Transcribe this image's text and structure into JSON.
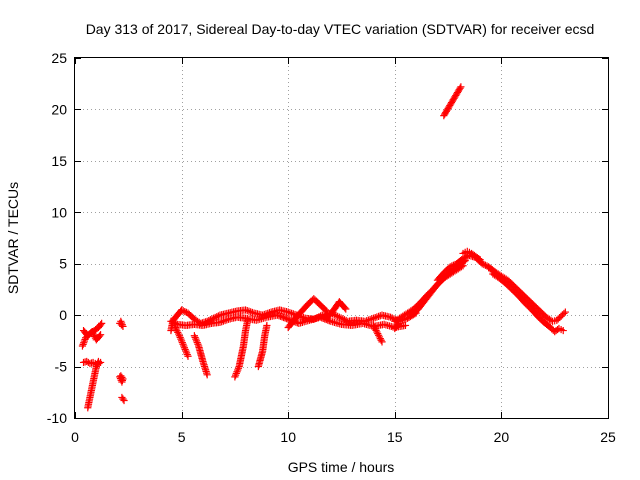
{
  "chart_data": {
    "type": "scatter",
    "title": "Day 313 of 2017, Sidereal Day-to-day VTEC variation (SDTVAR) for receiver ecsd",
    "xlabel": "GPS time / hours",
    "ylabel": "SDTVAR / TECUs",
    "xlim": [
      0,
      25
    ],
    "ylim": [
      -10,
      25
    ],
    "xticks": [
      0,
      5,
      10,
      15,
      20,
      25
    ],
    "yticks": [
      -10,
      -5,
      0,
      5,
      10,
      15,
      20,
      25
    ],
    "xtick_labels": [
      "0",
      "5",
      "10",
      "15",
      "20",
      "25"
    ],
    "ytick_labels": [
      "-10",
      "-5",
      "0",
      "5",
      "10",
      "15",
      "20",
      "25"
    ],
    "grid": true,
    "marker": "+",
    "series_color": "#ff0000",
    "series": [
      {
        "name": "SDTVAR",
        "segments": [
          [
            [
              0.35,
              -3.0
            ],
            [
              0.5,
              -2.2
            ],
            [
              0.7,
              -1.8
            ],
            [
              0.9,
              -1.5
            ],
            [
              1.1,
              -1.2
            ],
            [
              1.25,
              -0.8
            ]
          ],
          [
            [
              0.4,
              -1.5
            ],
            [
              0.6,
              -2.0
            ],
            [
              0.8,
              -1.6
            ],
            [
              1.0,
              -2.4
            ],
            [
              1.2,
              -1.9
            ]
          ],
          [
            [
              0.4,
              -4.6
            ],
            [
              0.55,
              -4.5
            ],
            [
              0.7,
              -4.7
            ],
            [
              0.85,
              -4.6
            ],
            [
              1.05,
              -4.8
            ],
            [
              1.2,
              -4.6
            ]
          ],
          [
            [
              0.6,
              -9.0
            ],
            [
              0.7,
              -8.0
            ],
            [
              0.8,
              -7.0
            ],
            [
              0.9,
              -6.0
            ],
            [
              1.0,
              -5.0
            ],
            [
              1.1,
              -4.5
            ]
          ],
          [
            [
              2.1,
              -0.8
            ],
            [
              2.25,
              -1.1
            ],
            [
              2.15,
              -0.6
            ]
          ],
          [
            [
              2.1,
              -6.0
            ],
            [
              2.2,
              -6.5
            ],
            [
              2.25,
              -6.2
            ],
            [
              2.15,
              -5.9
            ]
          ],
          [
            [
              2.2,
              -8.0
            ],
            [
              2.3,
              -8.3
            ]
          ],
          [
            [
              4.5,
              -1.5
            ],
            [
              4.6,
              -0.5
            ],
            [
              4.8,
              0.0
            ],
            [
              5.0,
              0.5
            ],
            [
              5.3,
              0.2
            ],
            [
              5.6,
              -0.4
            ],
            [
              5.9,
              -0.8
            ],
            [
              6.2,
              -0.6
            ],
            [
              6.5,
              -0.3
            ],
            [
              6.8,
              0.0
            ],
            [
              7.2,
              0.2
            ],
            [
              7.6,
              0.4
            ],
            [
              8.0,
              0.5
            ],
            [
              8.4,
              0.2
            ],
            [
              8.8,
              0.0
            ],
            [
              9.2,
              0.3
            ],
            [
              9.6,
              0.5
            ],
            [
              10.0,
              0.3
            ],
            [
              10.4,
              0.0
            ],
            [
              10.8,
              -0.3
            ],
            [
              11.2,
              -0.4
            ],
            [
              11.6,
              0.0
            ],
            [
              12.0,
              0.2
            ],
            [
              12.4,
              -0.2
            ],
            [
              12.8,
              -0.6
            ],
            [
              13.2,
              -0.5
            ],
            [
              13.6,
              -0.6
            ],
            [
              14.0,
              -0.3
            ],
            [
              14.4,
              0.0
            ],
            [
              14.8,
              -0.2
            ],
            [
              15.2,
              -0.6
            ],
            [
              15.6,
              -0.3
            ],
            [
              16.0,
              0.2
            ]
          ],
          [
            [
              4.5,
              -0.6
            ],
            [
              4.8,
              -0.9
            ],
            [
              5.2,
              -1.0
            ],
            [
              5.6,
              -0.9
            ],
            [
              6.0,
              -1.0
            ],
            [
              6.4,
              -0.8
            ],
            [
              6.8,
              -0.7
            ],
            [
              7.2,
              -0.4
            ],
            [
              7.6,
              -0.2
            ],
            [
              8.0,
              -0.3
            ],
            [
              8.5,
              -0.5
            ],
            [
              9.0,
              -0.2
            ],
            [
              9.5,
              0.0
            ],
            [
              10.0,
              -0.4
            ],
            [
              10.5,
              -0.8
            ],
            [
              11.0,
              -0.5
            ],
            [
              11.5,
              -0.2
            ],
            [
              12.0,
              -0.6
            ],
            [
              12.5,
              -0.9
            ],
            [
              13.0,
              -1.0
            ],
            [
              13.5,
              -0.8
            ],
            [
              14.0,
              -1.1
            ],
            [
              14.5,
              -0.9
            ],
            [
              15.0,
              -1.2
            ],
            [
              15.5,
              -1.0
            ]
          ],
          [
            [
              4.7,
              -1.2
            ],
            [
              4.9,
              -2.0
            ],
            [
              5.1,
              -3.0
            ],
            [
              5.3,
              -4.0
            ]
          ],
          [
            [
              5.6,
              -2.0
            ],
            [
              5.8,
              -3.0
            ],
            [
              6.0,
              -4.5
            ],
            [
              6.2,
              -5.8
            ]
          ],
          [
            [
              7.5,
              -6.0
            ],
            [
              7.7,
              -5.0
            ],
            [
              7.9,
              -3.0
            ],
            [
              8.0,
              -1.5
            ],
            [
              8.1,
              -0.5
            ]
          ],
          [
            [
              8.6,
              -5.0
            ],
            [
              8.8,
              -3.5
            ],
            [
              8.9,
              -2.0
            ],
            [
              9.0,
              -1.0
            ]
          ],
          [
            [
              10.0,
              -1.2
            ],
            [
              10.3,
              -0.4
            ],
            [
              10.6,
              0.3
            ],
            [
              10.9,
              1.0
            ],
            [
              11.2,
              1.6
            ],
            [
              11.5,
              1.0
            ],
            [
              11.8,
              0.4
            ]
          ],
          [
            [
              11.8,
              -0.3
            ],
            [
              12.1,
              0.4
            ],
            [
              12.4,
              1.3
            ],
            [
              12.7,
              0.6
            ]
          ],
          [
            [
              14.0,
              -1.0
            ],
            [
              14.2,
              -1.8
            ],
            [
              14.4,
              -2.6
            ]
          ],
          [
            [
              15.0,
              -1.3
            ],
            [
              15.2,
              -0.8
            ]
          ],
          [
            [
              15.0,
              -0.6
            ],
            [
              15.3,
              -0.2
            ],
            [
              15.6,
              0.2
            ],
            [
              15.9,
              0.6
            ],
            [
              16.2,
              1.2
            ],
            [
              16.5,
              1.9
            ],
            [
              16.8,
              2.5
            ],
            [
              17.1,
              3.2
            ],
            [
              17.4,
              3.8
            ],
            [
              17.7,
              4.3
            ],
            [
              18.0,
              4.8
            ],
            [
              18.3,
              5.3
            ]
          ],
          [
            [
              15.8,
              0.0
            ],
            [
              16.1,
              0.6
            ],
            [
              16.4,
              1.4
            ],
            [
              16.7,
              2.2
            ],
            [
              17.0,
              3.0
            ],
            [
              17.3,
              3.6
            ],
            [
              17.6,
              4.0
            ],
            [
              17.9,
              4.4
            ],
            [
              18.2,
              4.8
            ]
          ],
          [
            [
              17.0,
              3.4
            ],
            [
              17.3,
              4.1
            ],
            [
              17.6,
              4.7
            ],
            [
              17.9,
              5.0
            ],
            [
              18.2,
              5.5
            ],
            [
              18.5,
              5.8
            ],
            [
              18.8,
              5.6
            ],
            [
              19.1,
              5.0
            ],
            [
              19.4,
              4.7
            ],
            [
              19.7,
              4.2
            ]
          ],
          [
            [
              18.2,
              6.0
            ],
            [
              18.4,
              6.2
            ],
            [
              18.6,
              6.0
            ],
            [
              18.8,
              5.7
            ],
            [
              19.0,
              5.4
            ]
          ],
          [
            [
              19.4,
              4.6
            ],
            [
              19.7,
              4.2
            ],
            [
              20.0,
              3.8
            ],
            [
              20.3,
              3.4
            ],
            [
              20.6,
              2.8
            ],
            [
              20.9,
              2.2
            ],
            [
              21.2,
              1.6
            ],
            [
              21.5,
              1.0
            ],
            [
              21.8,
              0.4
            ],
            [
              22.1,
              -0.2
            ],
            [
              22.4,
              -0.6
            ],
            [
              22.6,
              -0.5
            ],
            [
              22.8,
              -0.1
            ],
            [
              23.0,
              0.3
            ]
          ],
          [
            [
              19.6,
              4.0
            ],
            [
              19.9,
              3.6
            ],
            [
              20.2,
              3.1
            ],
            [
              20.5,
              2.5
            ],
            [
              20.8,
              1.9
            ],
            [
              21.1,
              1.2
            ],
            [
              21.4,
              0.6
            ],
            [
              21.7,
              -0.1
            ],
            [
              22.0,
              -0.7
            ],
            [
              22.3,
              -1.2
            ],
            [
              22.5,
              -1.6
            ],
            [
              22.7,
              -1.3
            ],
            [
              22.9,
              -1.5
            ]
          ],
          [
            [
              17.3,
              19.4
            ],
            [
              17.5,
              20.1
            ],
            [
              17.7,
              20.8
            ],
            [
              17.9,
              21.5
            ],
            [
              18.1,
              22.2
            ]
          ]
        ]
      }
    ]
  }
}
